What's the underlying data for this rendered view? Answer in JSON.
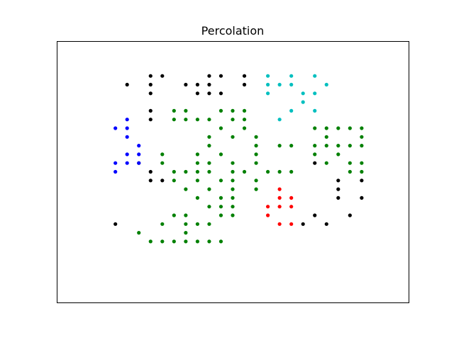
{
  "chart_data": {
    "type": "scatter",
    "title": "Percolation",
    "xlabel": "",
    "ylabel": "",
    "xlim": [
      -5,
      25
    ],
    "ylim": [
      -5,
      25
    ],
    "grid": false,
    "axes_ticks": false,
    "legend": "none",
    "series": [
      {
        "color": "#000000",
        "points": [
          [
            1,
            20
          ],
          [
            3,
            21
          ],
          [
            3,
            20
          ],
          [
            3,
            19
          ],
          [
            4,
            21
          ],
          [
            6,
            20
          ],
          [
            7,
            20
          ],
          [
            7,
            19
          ],
          [
            8,
            21
          ],
          [
            8,
            20
          ],
          [
            8,
            19
          ],
          [
            9,
            21
          ],
          [
            9,
            19
          ],
          [
            11,
            21
          ],
          [
            11,
            20
          ],
          [
            3,
            17
          ],
          [
            3,
            16
          ],
          [
            2,
            11
          ],
          [
            3,
            10
          ],
          [
            3,
            9
          ],
          [
            4,
            9
          ],
          [
            0,
            4
          ],
          [
            17,
            11
          ],
          [
            19,
            9
          ],
          [
            19,
            8
          ],
          [
            19,
            7
          ],
          [
            21,
            9
          ],
          [
            21,
            7
          ],
          [
            16,
            4
          ],
          [
            17,
            5
          ],
          [
            18,
            4
          ],
          [
            20,
            5
          ]
        ]
      },
      {
        "color": "#0000ff",
        "points": [
          [
            1,
            16
          ],
          [
            0,
            15
          ],
          [
            1,
            15
          ],
          [
            1,
            14
          ],
          [
            2,
            13
          ],
          [
            1,
            12
          ],
          [
            2,
            12
          ],
          [
            1,
            11
          ],
          [
            0,
            11
          ],
          [
            2,
            11
          ],
          [
            0,
            10
          ]
        ]
      },
      {
        "color": "#00bfbf",
        "points": [
          [
            13,
            21
          ],
          [
            15,
            21
          ],
          [
            17,
            21
          ],
          [
            13,
            20
          ],
          [
            14,
            20
          ],
          [
            15,
            20
          ],
          [
            18,
            20
          ],
          [
            13,
            19
          ],
          [
            16,
            19
          ],
          [
            17,
            19
          ],
          [
            16,
            18
          ],
          [
            15,
            17
          ],
          [
            17,
            17
          ],
          [
            14,
            16
          ]
        ]
      },
      {
        "color": "#008000",
        "points": [
          [
            5,
            17
          ],
          [
            6,
            17
          ],
          [
            9,
            17
          ],
          [
            10,
            17
          ],
          [
            11,
            17
          ],
          [
            5,
            16
          ],
          [
            6,
            16
          ],
          [
            7,
            16
          ],
          [
            8,
            16
          ],
          [
            10,
            16
          ],
          [
            11,
            16
          ],
          [
            9,
            15
          ],
          [
            11,
            15
          ],
          [
            17,
            15
          ],
          [
            18,
            15
          ],
          [
            19,
            15
          ],
          [
            20,
            15
          ],
          [
            21,
            15
          ],
          [
            8,
            14
          ],
          [
            10,
            14
          ],
          [
            12,
            14
          ],
          [
            18,
            14
          ],
          [
            21,
            14
          ],
          [
            8,
            13
          ],
          [
            12,
            13
          ],
          [
            14,
            13
          ],
          [
            15,
            13
          ],
          [
            17,
            13
          ],
          [
            18,
            13
          ],
          [
            19,
            13
          ],
          [
            20,
            13
          ],
          [
            21,
            13
          ],
          [
            4,
            12
          ],
          [
            7,
            12
          ],
          [
            9,
            12
          ],
          [
            12,
            12
          ],
          [
            17,
            12
          ],
          [
            19,
            12
          ],
          [
            4,
            11
          ],
          [
            7,
            11
          ],
          [
            8,
            11
          ],
          [
            10,
            11
          ],
          [
            12,
            11
          ],
          [
            18,
            11
          ],
          [
            20,
            11
          ],
          [
            21,
            11
          ],
          [
            5,
            10
          ],
          [
            6,
            10
          ],
          [
            7,
            10
          ],
          [
            8,
            10
          ],
          [
            10,
            10
          ],
          [
            11,
            10
          ],
          [
            13,
            10
          ],
          [
            14,
            10
          ],
          [
            15,
            10
          ],
          [
            20,
            10
          ],
          [
            21,
            10
          ],
          [
            5,
            9
          ],
          [
            7,
            9
          ],
          [
            9,
            9
          ],
          [
            10,
            9
          ],
          [
            12,
            9
          ],
          [
            6,
            8
          ],
          [
            8,
            8
          ],
          [
            10,
            8
          ],
          [
            12,
            8
          ],
          [
            9,
            7
          ],
          [
            10,
            7
          ],
          [
            7,
            7
          ],
          [
            8,
            6
          ],
          [
            9,
            6
          ],
          [
            10,
            6
          ],
          [
            5,
            5
          ],
          [
            6,
            5
          ],
          [
            9,
            5
          ],
          [
            10,
            5
          ],
          [
            4,
            4
          ],
          [
            6,
            4
          ],
          [
            7,
            4
          ],
          [
            8,
            4
          ],
          [
            6,
            3
          ],
          [
            2,
            3
          ],
          [
            3,
            2
          ],
          [
            4,
            2
          ],
          [
            5,
            2
          ],
          [
            6,
            2
          ],
          [
            7,
            2
          ],
          [
            8,
            2
          ],
          [
            9,
            2
          ]
        ]
      },
      {
        "color": "#ff0000",
        "points": [
          [
            14,
            8
          ],
          [
            14,
            7
          ],
          [
            15,
            7
          ],
          [
            13,
            6
          ],
          [
            14,
            6
          ],
          [
            15,
            6
          ],
          [
            13,
            5
          ],
          [
            14,
            4
          ],
          [
            15,
            4
          ]
        ]
      }
    ]
  }
}
